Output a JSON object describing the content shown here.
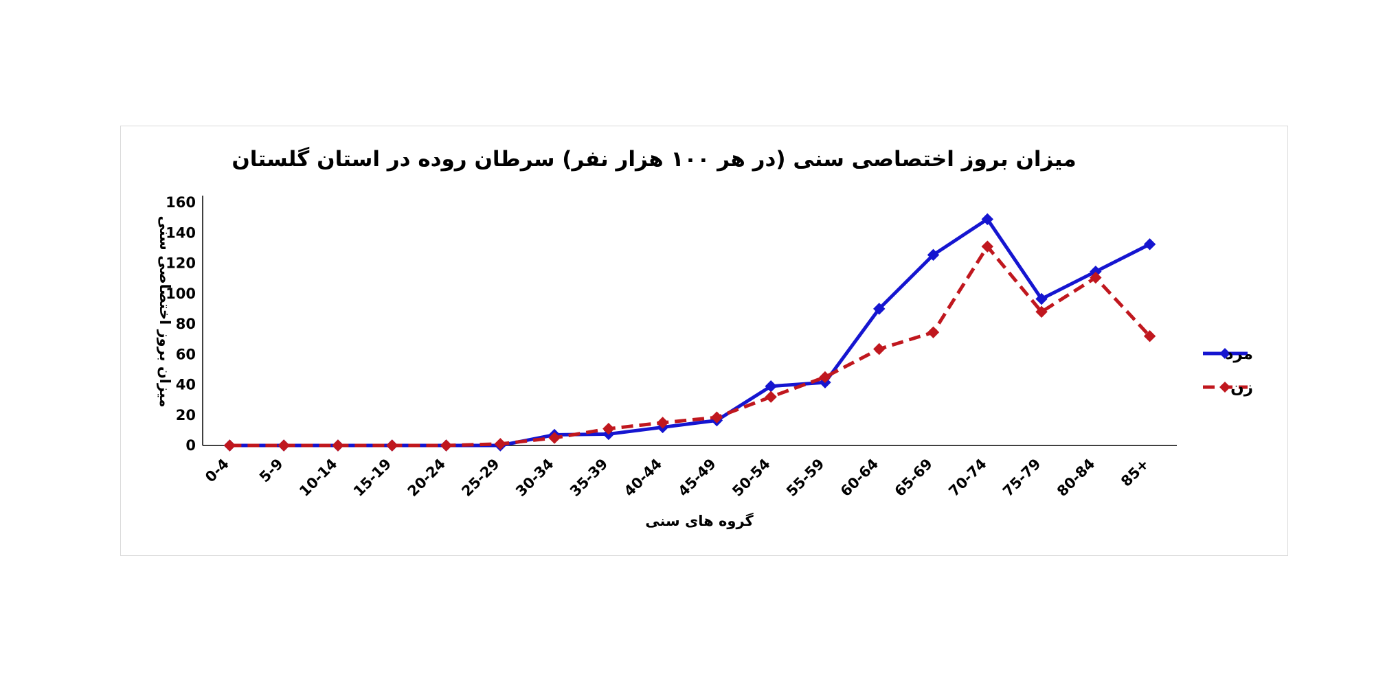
{
  "chart_data": {
    "type": "line",
    "title": "میزان بروز اختصاصی سنی (در هر ۱۰۰ هزار نفر) سرطان روده در استان گلستان",
    "xlabel": "گروه های سنی",
    "ylabel": "میزان بروز اختصاصی سنی",
    "categories": [
      "0-4",
      "5-9",
      "10-14",
      "15-19",
      "20-24",
      "25-29",
      "30-34",
      "35-39",
      "40-44",
      "45-49",
      "50-54",
      "55-59",
      "60-64",
      "65-69",
      "70-74",
      "75-79",
      "80-84",
      "85+"
    ],
    "ylim": [
      0,
      160
    ],
    "yticks": [
      "0",
      "20",
      "40",
      "60",
      "80",
      "100",
      "120",
      "140",
      "160"
    ],
    "grid": false,
    "legend_position": "right",
    "series": [
      {
        "name": "مرد",
        "color": "#1515d0",
        "style": "solid",
        "values": [
          0,
          0,
          0,
          0,
          0,
          0,
          7,
          7.5,
          12,
          16.5,
          39,
          41.5,
          90,
          125.5,
          149,
          96.5,
          114.5,
          132.5
        ]
      },
      {
        "name": "زن",
        "color": "#c0171e",
        "style": "dashed",
        "values": [
          0,
          0,
          0,
          0,
          0,
          1,
          5,
          11,
          15,
          18.5,
          32,
          45,
          63.5,
          74.5,
          131,
          88,
          110.5,
          72
        ]
      }
    ]
  }
}
